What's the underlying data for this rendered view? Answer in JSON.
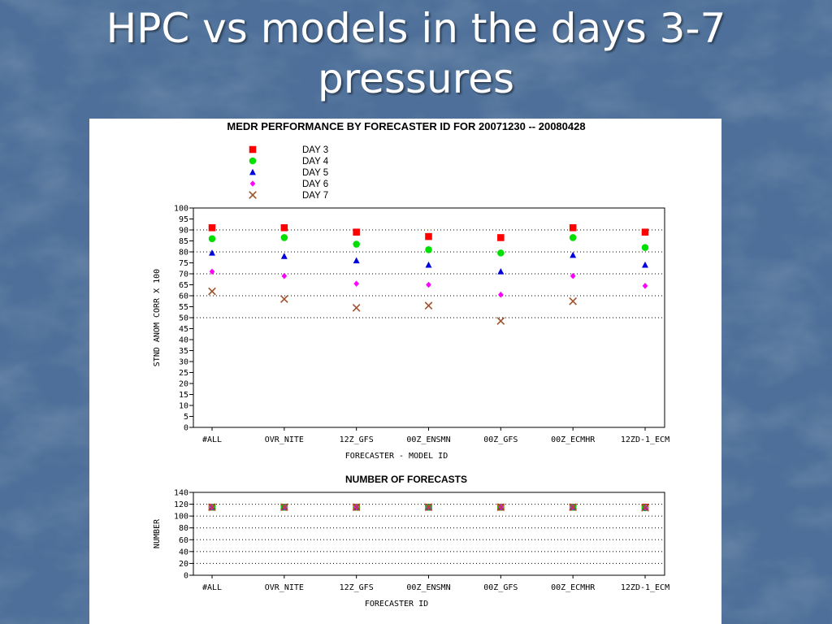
{
  "slide": {
    "title_line1": "HPC vs models in the days 3-7",
    "title_line2": "pressures"
  },
  "colors": {
    "background": "#4d6f99",
    "day3": "#ff0000",
    "day4": "#00e000",
    "day5": "#0000dd",
    "day6": "#ff00ff",
    "day7": "#a0522d"
  },
  "chart_data": [
    {
      "type": "scatter",
      "title": "MEDR PERFORMANCE BY FORECASTER ID FOR 20071230 -- 20080428",
      "xlabel": "FORECASTER - MODEL ID",
      "ylabel": "STND ANOM CORR X 100",
      "ylim": [
        0,
        100
      ],
      "yticks": [
        0,
        5,
        10,
        15,
        20,
        25,
        30,
        35,
        40,
        45,
        50,
        55,
        60,
        65,
        70,
        75,
        80,
        85,
        90,
        95,
        100
      ],
      "gridlines_at": [
        50,
        60,
        70,
        80,
        90
      ],
      "grid": "horizontal dotted",
      "legend_position": "top",
      "categories": [
        "#ALL",
        "OVR_NITE",
        "12Z_GFS",
        "00Z_ENSMN",
        "00Z_GFS",
        "00Z_ECMHR",
        "12ZD-1_ECM"
      ],
      "series": [
        {
          "name": "DAY 3",
          "marker": "square",
          "values": [
            91,
            91,
            89,
            87,
            86.5,
            91,
            89
          ]
        },
        {
          "name": "DAY 4",
          "marker": "circle",
          "values": [
            86,
            86.5,
            83.5,
            81,
            79.5,
            86.5,
            82
          ]
        },
        {
          "name": "DAY 5",
          "marker": "triangle",
          "values": [
            79.5,
            78,
            76,
            74,
            71,
            78.5,
            74
          ]
        },
        {
          "name": "DAY 6",
          "marker": "diamond",
          "values": [
            71,
            69,
            65.5,
            65,
            60.5,
            69,
            64.5
          ]
        },
        {
          "name": "DAY 7",
          "marker": "x",
          "values": [
            62,
            58.5,
            54.5,
            55.5,
            48.5,
            57.5,
            null
          ]
        }
      ]
    },
    {
      "type": "scatter",
      "title": "NUMBER OF FORECASTS",
      "xlabel": "FORECASTER ID",
      "ylabel": "NUMBER",
      "ylim": [
        0,
        140
      ],
      "yticks": [
        0,
        20,
        40,
        60,
        80,
        100,
        120,
        140
      ],
      "gridlines_at": [
        20,
        40,
        60,
        80,
        100,
        120
      ],
      "grid": "horizontal dotted",
      "categories": [
        "#ALL",
        "OVR_NITE",
        "12Z_GFS",
        "00Z_ENSMN",
        "00Z_GFS",
        "00Z_ECMHR",
        "12ZD-1_ECM"
      ],
      "series": [
        {
          "name": "DAY 3",
          "marker": "square",
          "values": [
            115,
            115,
            115,
            115,
            115,
            115,
            115
          ]
        },
        {
          "name": "DAY 4",
          "marker": "circle",
          "values": [
            115,
            115,
            115,
            115,
            115,
            115,
            114
          ]
        },
        {
          "name": "DAY 5",
          "marker": "triangle",
          "values": [
            115,
            115,
            115,
            115,
            115,
            115,
            114
          ]
        },
        {
          "name": "DAY 6",
          "marker": "diamond",
          "values": [
            115,
            115,
            115,
            115,
            115,
            115,
            114
          ]
        },
        {
          "name": "DAY 7",
          "marker": "x",
          "values": [
            115,
            115,
            115,
            115,
            115,
            115,
            114
          ]
        }
      ]
    }
  ]
}
